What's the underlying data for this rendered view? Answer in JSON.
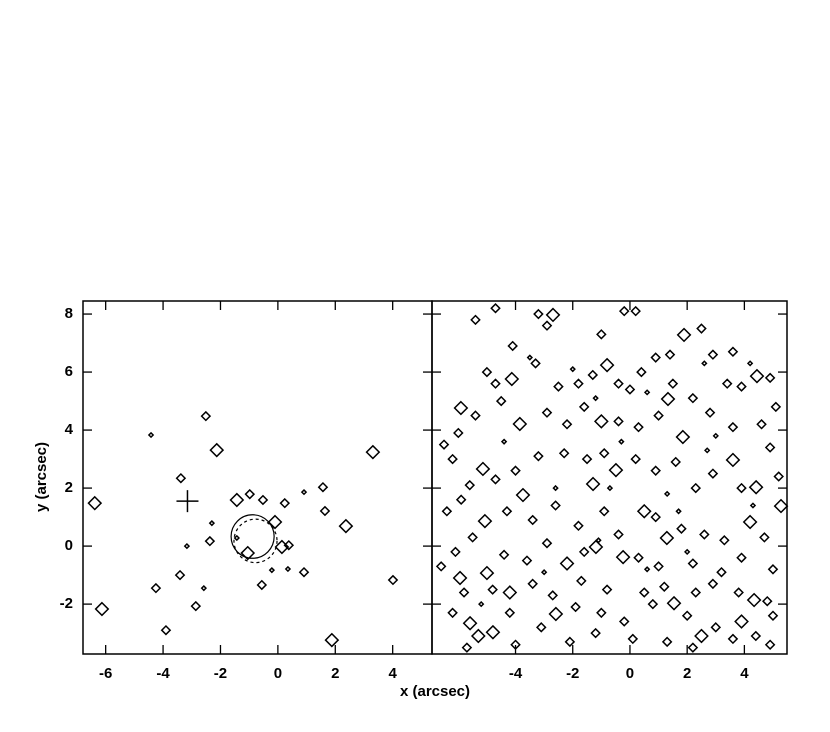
{
  "chart_data": [
    {
      "type": "scatter",
      "ylabel": "y (arcsec)",
      "xlabel": "x (arcsec)",
      "xlim": [
        -6.79,
        5.37
      ],
      "ylim": [
        -3.72,
        8.45
      ],
      "xticks": [
        -6,
        -4,
        -2,
        0,
        2,
        4
      ],
      "yticks": [
        -2,
        0,
        2,
        4,
        6,
        8
      ],
      "ytick_labels": true,
      "color": "#000000",
      "series": [
        {
          "size": 3,
          "x": [
            -6.38,
            -6.13,
            -2.13,
            -1.43,
            2.37,
            3.31,
            1.88,
            -1.05,
            -0.1,
            0.14
          ],
          "values": [
            1.48,
            -2.17,
            3.31,
            1.59,
            0.69,
            3.24,
            -3.24,
            -0.24,
            0.83,
            -0.03
          ]
        },
        {
          "size": 2,
          "x": [
            -2.51,
            -3.38,
            -0.98,
            -0.52,
            0.24,
            1.57,
            1.64,
            4.01,
            -3.9,
            -4.25,
            -3.41,
            -2.86,
            -2.37,
            -0.56,
            0.38,
            0.91
          ],
          "values": [
            4.48,
            2.34,
            1.79,
            1.59,
            1.48,
            2.03,
            1.21,
            -1.17,
            -2.9,
            -1.45,
            -1.0,
            -2.07,
            0.17,
            -1.34,
            0.03,
            -0.9
          ]
        },
        {
          "size": 1,
          "x": [
            -4.42,
            0.91,
            -2.58,
            -3.17,
            -2.3,
            -0.21,
            0.35,
            -1.43
          ],
          "values": [
            3.83,
            1.86,
            -1.45,
            0,
            0.79,
            -0.83,
            -0.79,
            0.28
          ]
        }
      ],
      "cross": {
        "x": -3.15,
        "y": 1.55
      },
      "circles": [
        {
          "x": -0.88,
          "y": 0.33,
          "r": 0.75,
          "dashed": false
        },
        {
          "x": -0.78,
          "y": 0.18,
          "r": 0.75,
          "dashed": true
        }
      ]
    },
    {
      "type": "scatter",
      "xlim": [
        -6.92,
        5.49
      ],
      "ylim": [
        -3.72,
        8.45
      ],
      "xticks": [
        -4,
        -2,
        0,
        2,
        4
      ],
      "yticks": [
        -2,
        0,
        2,
        4,
        6,
        8
      ],
      "ytick_labels": false,
      "color": "#000000",
      "series": [
        {
          "size": 3,
          "x": [
            -5.91,
            -2.69,
            1.89,
            1.85,
            1.33,
            -1.19,
            -0.24,
            -5.14,
            -5.07,
            -5.0,
            -5.94,
            -5.59,
            -4.79,
            -2.59,
            4.34,
            4.2,
            4.41,
            5.28,
            3.6,
            4.44,
            1.54,
            1.29,
            -0.49,
            -1.29,
            -3.74,
            -4.13,
            -0.8,
            -3.85,
            -5.3,
            -4.2,
            2.5,
            0.5,
            -1.0,
            3.9,
            -2.2
          ],
          "values": [
            4.76,
            7.97,
            7.28,
            3.76,
            5.07,
            -0.03,
            -0.38,
            2.66,
            0.86,
            -0.93,
            -1.1,
            -2.66,
            -2.97,
            -2.34,
            -1.86,
            0.83,
            2.03,
            1.38,
            2.97,
            5.86,
            -1.97,
            0.28,
            2.62,
            2.14,
            1.76,
            5.76,
            6.24,
            4.21,
            -3.1,
            -1.6,
            -3.1,
            1.2,
            4.3,
            -2.6,
            -0.6
          ]
        },
        {
          "size": 2,
          "x": [
            -5.4,
            -4.7,
            -3.2,
            -2.9,
            -4.1,
            -5.0,
            -4.7,
            -3.3,
            -2.5,
            -1.8,
            -1.3,
            -0.4,
            0.0,
            0.4,
            0.9,
            1.4,
            2.5,
            2.9,
            3.4,
            3.9,
            4.9,
            5.1,
            4.6,
            3.6,
            2.8,
            2.2,
            1.0,
            0.3,
            -0.4,
            -1.6,
            -2.2,
            -2.9,
            -4.5,
            -5.4,
            -6.0,
            -6.2,
            -5.6,
            -4.7,
            -4.0,
            -3.2,
            -2.3,
            -1.5,
            -0.9,
            0.2,
            0.9,
            1.6,
            2.3,
            2.9,
            3.9,
            4.9,
            5.2,
            -6.4,
            -5.9,
            -4.3,
            -3.4,
            -2.6,
            -1.8,
            -0.9,
            -0.4,
            0.9,
            1.8,
            2.6,
            3.3,
            4.7,
            -6.1,
            -5.5,
            -4.4,
            -3.6,
            -2.9,
            -1.6,
            0.3,
            1.0,
            2.2,
            3.2,
            3.9,
            5.0,
            -6.6,
            -5.8,
            -4.8,
            -3.4,
            -2.7,
            -1.7,
            -0.8,
            0.5,
            1.2,
            2.3,
            2.9,
            3.8,
            4.8,
            -6.2,
            -4.2,
            -3.1,
            -1.9,
            -1.0,
            -0.2,
            0.8,
            2.0,
            3.0,
            4.4,
            5.0,
            -5.7,
            -4.0,
            -2.1,
            -1.2,
            0.1,
            1.3,
            2.2,
            3.6,
            4.9,
            -1.0,
            -0.2,
            0.2,
            1.5,
            3.6,
            -6.5
          ],
          "values": [
            7.8,
            8.2,
            8.0,
            7.6,
            6.9,
            6.0,
            5.6,
            6.3,
            5.5,
            5.6,
            5.9,
            5.6,
            5.4,
            6.0,
            6.5,
            6.6,
            7.5,
            6.6,
            5.6,
            5.5,
            5.8,
            4.8,
            4.2,
            4.1,
            4.6,
            5.1,
            4.5,
            4.1,
            4.3,
            4.8,
            4.2,
            4.6,
            5.0,
            4.5,
            3.9,
            3.0,
            2.1,
            2.3,
            2.6,
            3.1,
            3.2,
            3.0,
            3.2,
            3.0,
            2.6,
            2.9,
            2.0,
            2.5,
            2.0,
            3.4,
            2.4,
            1.2,
            1.6,
            1.2,
            0.9,
            1.4,
            0.7,
            1.2,
            0.4,
            1.0,
            0.6,
            0.4,
            0.2,
            0.3,
            -0.2,
            0.3,
            -0.3,
            -0.5,
            0.1,
            -0.2,
            -0.4,
            -0.7,
            -0.6,
            -0.9,
            -0.4,
            -0.8,
            -0.7,
            -1.6,
            -1.5,
            -1.3,
            -1.7,
            -1.2,
            -1.5,
            -1.6,
            -1.4,
            -1.6,
            -1.3,
            -1.6,
            -1.9,
            -2.3,
            -2.3,
            -2.8,
            -2.1,
            -2.3,
            -2.6,
            -2.0,
            -2.4,
            -2.8,
            -3.1,
            -2.4,
            -3.5,
            -3.4,
            -3.3,
            -3.0,
            -3.2,
            -3.3,
            -3.5,
            -3.2,
            -3.4,
            7.3,
            8.1,
            8.1,
            5.6,
            6.7,
            3.5
          ]
        },
        {
          "size": 1,
          "x": [
            -3.5,
            -2.0,
            0.6,
            2.6,
            4.2,
            -1.2,
            -0.3,
            3.0,
            -4.4,
            -2.6,
            1.3,
            -1.1,
            2.0,
            -3.0,
            0.6,
            4.3,
            -5.2,
            1.7,
            -0.7,
            2.7
          ],
          "values": [
            6.5,
            6.1,
            5.3,
            6.3,
            6.3,
            5.1,
            3.6,
            3.8,
            3.6,
            2.0,
            1.8,
            0.2,
            -0.2,
            -0.9,
            -0.8,
            1.4,
            -2.0,
            1.2,
            2.0,
            3.3
          ]
        }
      ]
    }
  ]
}
